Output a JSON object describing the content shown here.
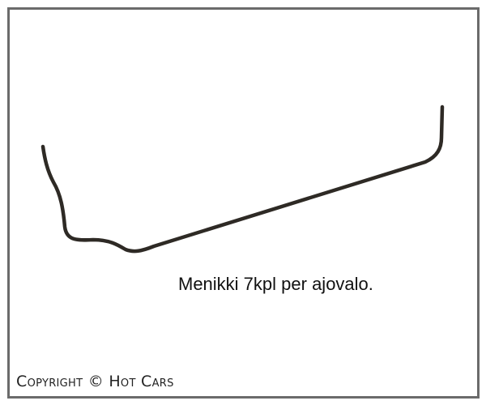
{
  "caption": "Menikki 7kpl per ajovalo.",
  "copyright": "Copyright © Hot Cars",
  "colors": {
    "frame": "#6b6b6b",
    "wire": "#2e2a25"
  }
}
